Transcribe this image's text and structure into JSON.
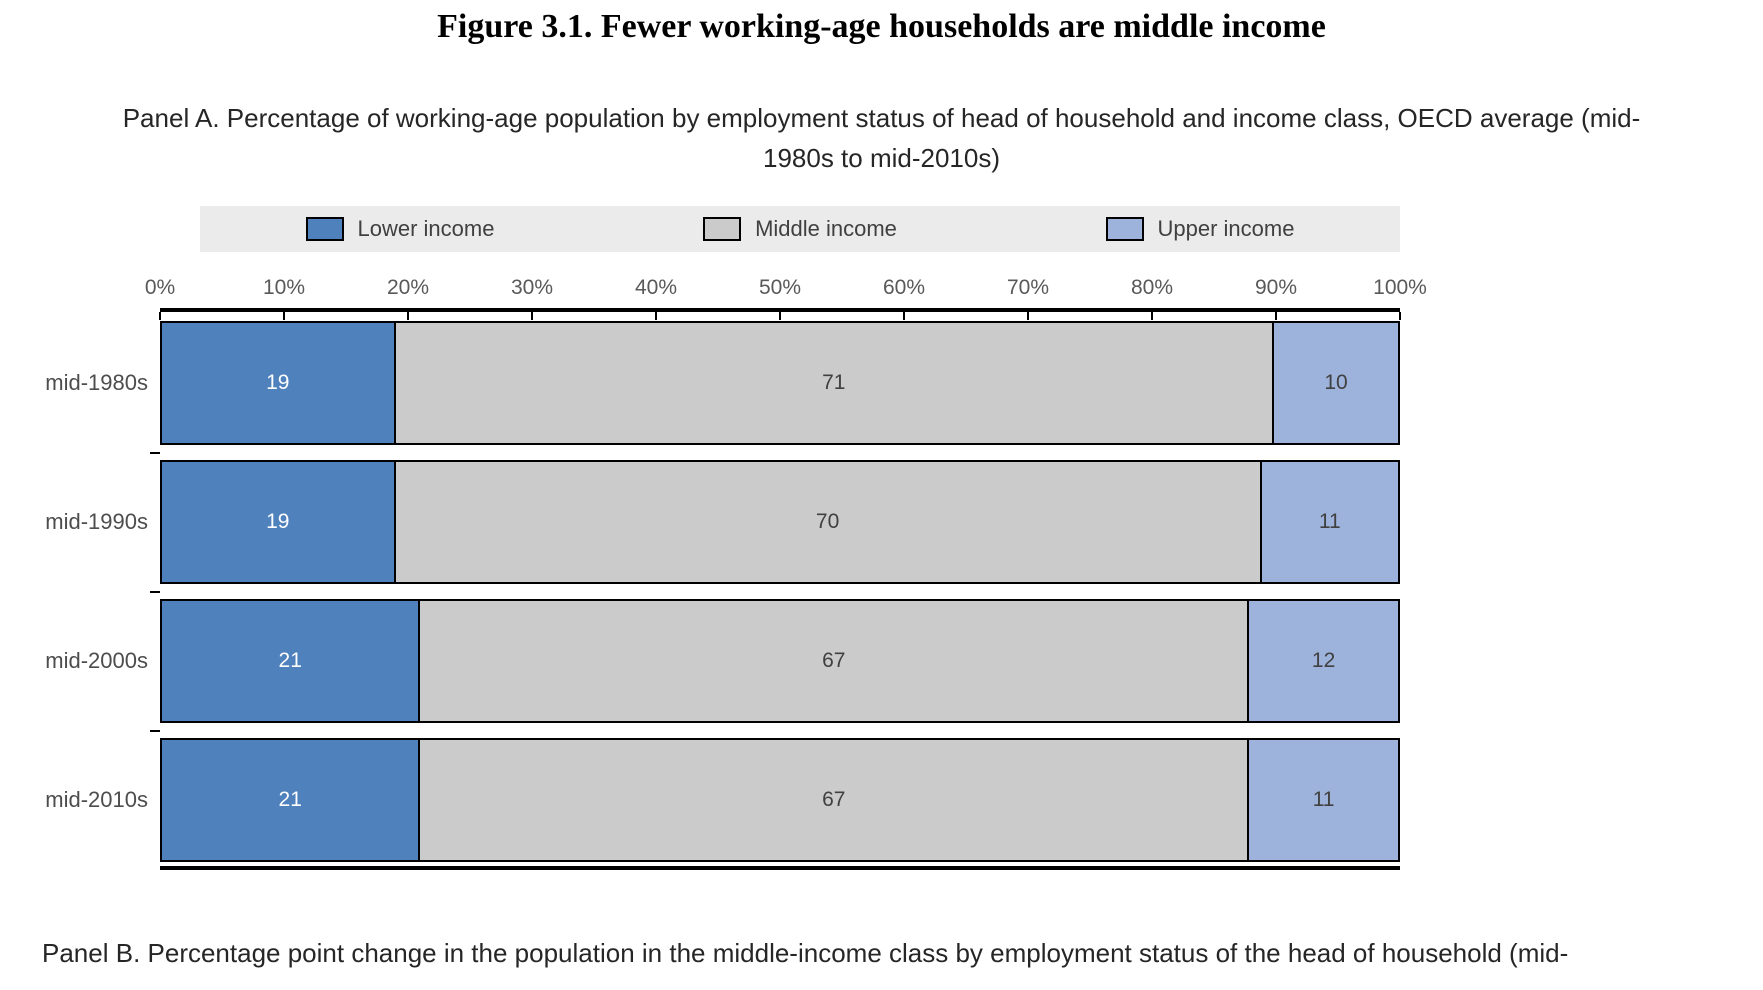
{
  "figure": {
    "title": "Figure 3.1. Fewer working-age households are middle income",
    "panel_a_caption_line1": "Panel A. Percentage of working-age population by employment status of head of household and income class, OECD average (mid-",
    "panel_a_caption_line2": "1980s to mid-2010s)",
    "panel_b_caption": "Panel B. Percentage point change in the population in the middle-income class by employment status of the head of household (mid-"
  },
  "chart_data": {
    "type": "bar",
    "subtype": "horizontal-stacked",
    "title": "Figure 3.1. Fewer working-age households are middle income",
    "subtitle": "Panel A. Percentage of working-age population by employment status of head of household and income class, OECD average (mid-1980s to mid-2010s)",
    "categories": [
      "mid-1980s",
      "mid-1990s",
      "mid-2000s",
      "mid-2010s"
    ],
    "series": [
      {
        "name": "Lower income",
        "color": "#4F81BD",
        "label_color": "#FFFFFF",
        "values": [
          19,
          19,
          21,
          21
        ]
      },
      {
        "name": "Middle income",
        "color": "#CBCBCB",
        "label_color": "#404040",
        "values": [
          71,
          70,
          67,
          67
        ]
      },
      {
        "name": "Upper income",
        "color": "#9DB3DC",
        "label_color": "#404040",
        "values": [
          10,
          11,
          12,
          11
        ]
      }
    ],
    "x_axis": {
      "min": 0,
      "max": 100,
      "unit": "%",
      "ticks": [
        "0%",
        "10%",
        "20%",
        "30%",
        "40%",
        "50%",
        "60%",
        "70%",
        "80%",
        "90%",
        "100%"
      ]
    },
    "legend": {
      "position": "top",
      "background": "#EBEBEB"
    },
    "grid": "off"
  }
}
